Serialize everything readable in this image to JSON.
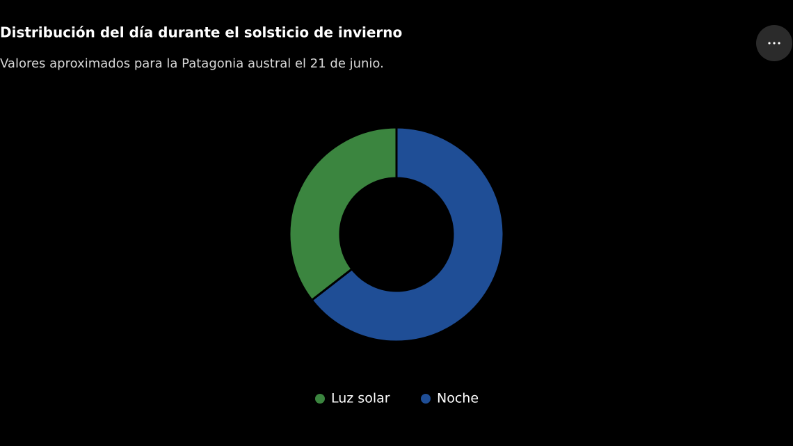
{
  "chart_data": {
    "type": "donut",
    "title": "Distribución del día durante el solsticio de invierno",
    "subtitle": "Valores aproximados para la Patagonia austral el 21 de junio.",
    "categories": [
      "Luz solar",
      "Noche"
    ],
    "values": [
      35.5,
      64.5
    ],
    "colors": [
      "#3b853f",
      "#1f4e96"
    ],
    "legend": "bottom"
  }
}
